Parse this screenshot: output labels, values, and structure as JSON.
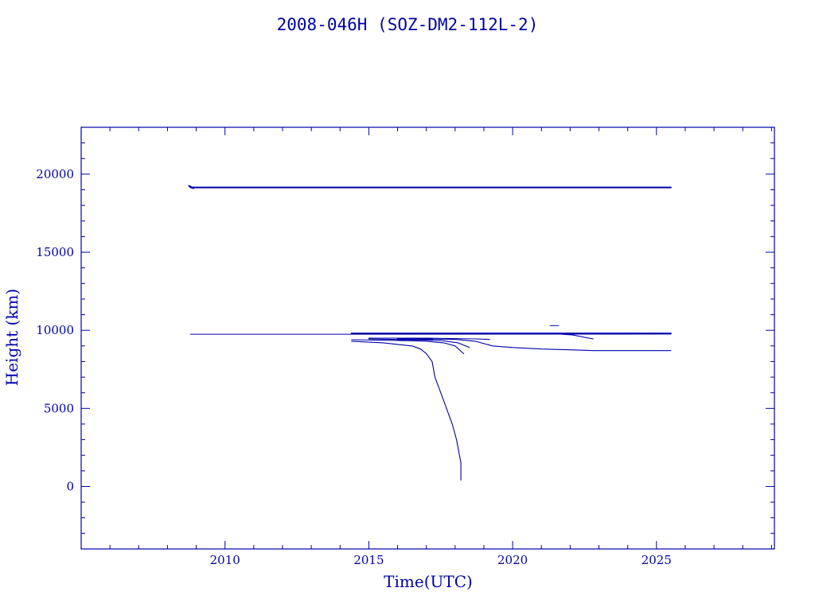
{
  "chart_data": {
    "type": "line",
    "title": "2008-046H (SOZ-DM2-112L-2)",
    "xlabel": "Time(UTC)",
    "ylabel": "Height (km)",
    "xlim": [
      2005.0,
      2029.1
    ],
    "ylim": [
      -4000,
      23000
    ],
    "x_major_ticks": [
      2010,
      2015,
      2020,
      2025
    ],
    "x_tick_labels": [
      "2010",
      "2015",
      "2020",
      "2025"
    ],
    "x_minor_step": 1,
    "y_major_ticks": [
      0,
      5000,
      10000,
      15000,
      20000
    ],
    "y_tick_labels": [
      "0",
      "5000",
      "10000",
      "15000",
      "20000"
    ],
    "y_minor_step": 1000,
    "grid": false,
    "color": "#0000aa",
    "series": [
      {
        "x": [
          2008.8,
          2025.5
        ],
        "y": [
          19150,
          19150
        ],
        "width": 2
      },
      {
        "x": [
          2008.75,
          2008.9
        ],
        "y": [
          19250,
          19100
        ],
        "width": 2
      },
      {
        "x": [
          2008.8,
          2014.4,
          2025.5
        ],
        "y": [
          9750,
          9750,
          9760
        ],
        "width": 1
      },
      {
        "x": [
          2014.4,
          2025.5
        ],
        "y": [
          9800,
          9800
        ],
        "width": 2
      },
      {
        "x": [
          2014.4,
          2015.5,
          2016.0,
          2016.5,
          2016.8,
          2017.0,
          2017.2,
          2017.3,
          2017.5,
          2017.7,
          2017.9,
          2018.05,
          2018.2,
          2018.2
        ],
        "y": [
          9300,
          9200,
          9100,
          9000,
          8800,
          8500,
          8000,
          7000,
          6000,
          5000,
          4000,
          3000,
          1500,
          400
        ],
        "width": 1.1
      },
      {
        "x": [
          2014.4,
          2016.0,
          2017.0,
          2017.6,
          2018.0,
          2018.3
        ],
        "y": [
          9400,
          9350,
          9300,
          9200,
          9000,
          8500
        ],
        "width": 1.1
      },
      {
        "x": [
          2015.0,
          2016.5,
          2017.5,
          2018.1,
          2018.5
        ],
        "y": [
          9450,
          9400,
          9350,
          9200,
          8900
        ],
        "width": 1.1
      },
      {
        "x": [
          2016.0,
          2017.0,
          2018.0,
          2018.7,
          2019.3,
          2020.0,
          2021.0,
          2022.0,
          2022.8,
          2025.5
        ],
        "y": [
          9450,
          9450,
          9420,
          9300,
          9000,
          8900,
          8800,
          8750,
          8700,
          8700
        ],
        "width": 1.1
      },
      {
        "x": [
          2015.0,
          2017.0,
          2018.7,
          2019.2
        ],
        "y": [
          9500,
          9500,
          9450,
          9420
        ],
        "width": 1.1
      },
      {
        "x": [
          2016.0,
          2017.2
        ],
        "y": [
          9420,
          9420
        ],
        "width": 2.2
      },
      {
        "x": [
          2021.3,
          2021.6
        ],
        "y": [
          10300,
          10300
        ],
        "width": 1
      },
      {
        "x": [
          2021.7,
          2022.1,
          2022.5,
          2022.8
        ],
        "y": [
          9750,
          9700,
          9550,
          9450
        ],
        "width": 1.1
      }
    ]
  }
}
